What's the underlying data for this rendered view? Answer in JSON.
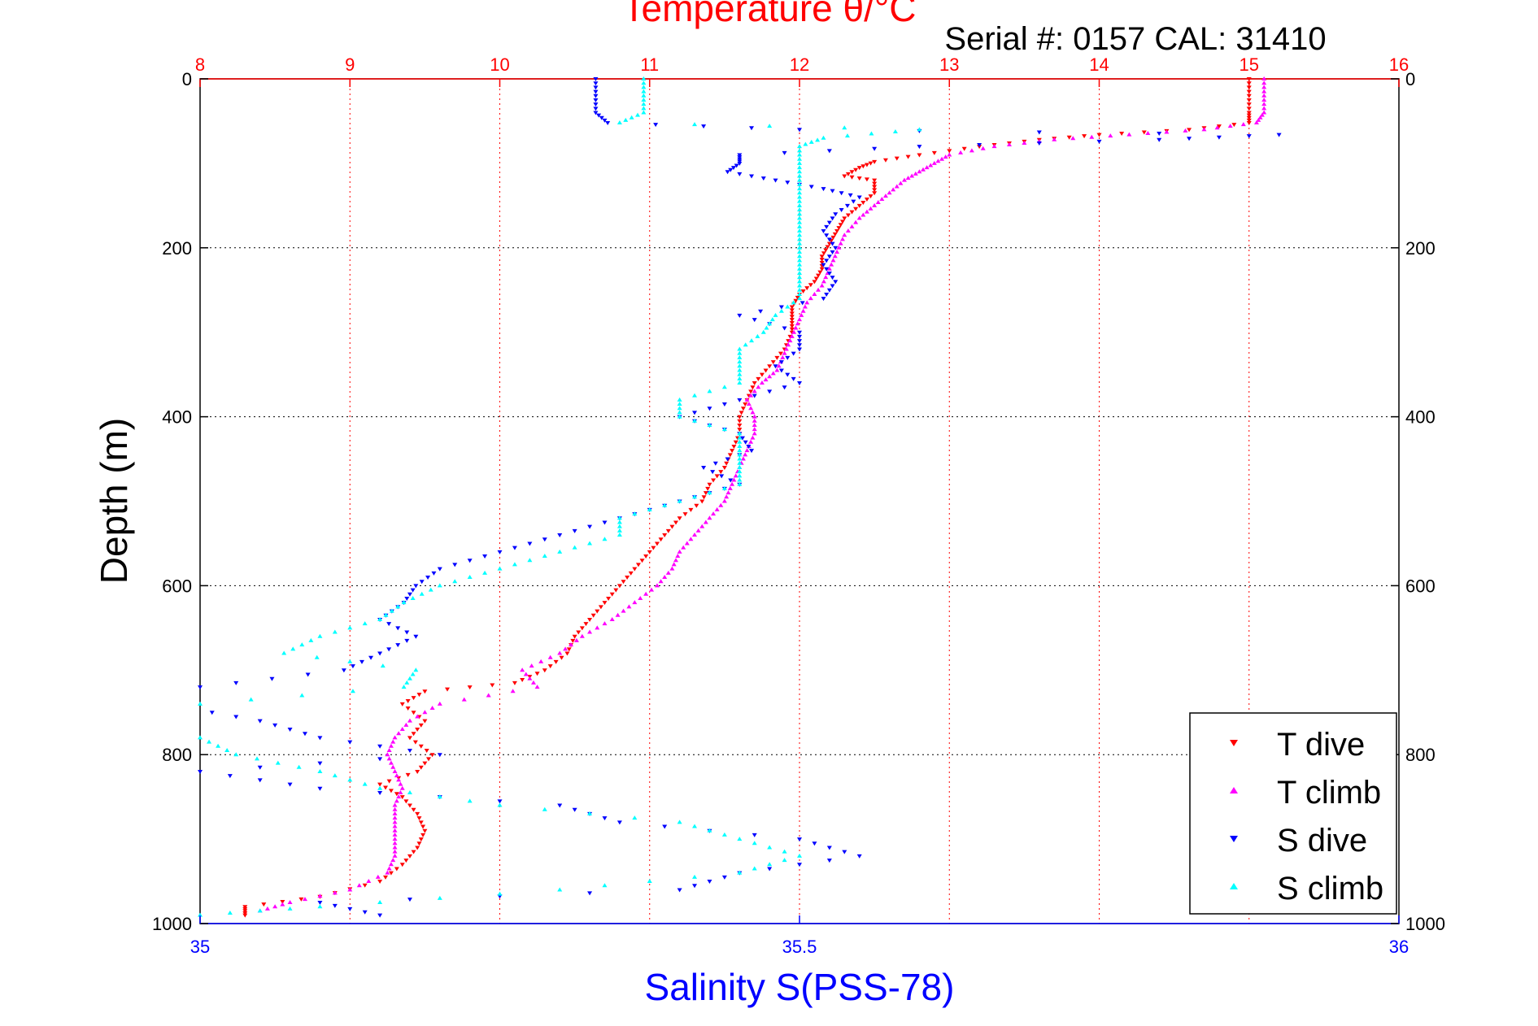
{
  "header": {
    "title": "Temperature θ/°C",
    "serial": "Serial #: 0157  CAL: 31410"
  },
  "colors": {
    "t_dive": "#ff0000",
    "t_climb": "#ff00ff",
    "s_dive": "#0000ff",
    "s_climb": "#00ffff",
    "temp_axis": "#ff0000",
    "sal_axis": "#0000ff",
    "depth_axis": "#000000"
  },
  "chart_data": {
    "type": "scatter",
    "title": "Temperature θ/°C",
    "ylabel": "Depth (m)",
    "xlabel_bottom": "Salinity S(PSS-78)",
    "xlabel_top": "Temperature θ/°C",
    "ylim": [
      0,
      1000
    ],
    "y_reversed": true,
    "temp_lim": [
      8,
      16
    ],
    "sal_lim": [
      35,
      36
    ],
    "temp_ticks": [
      "8",
      "9",
      "10",
      "11",
      "12",
      "13",
      "14",
      "15",
      "16"
    ],
    "sal_ticks": [
      "35",
      "35.5",
      "36"
    ],
    "depth_ticks": [
      "0",
      "200",
      "400",
      "600",
      "800",
      "1000"
    ],
    "grid": "on",
    "legend_position": "bottom-right",
    "legend": [
      "T dive",
      "T climb",
      "S dive",
      "S climb"
    ],
    "series": [
      {
        "name": "T dive",
        "axis": "temperature",
        "marker": "triangle-down",
        "points": [
          [
            15.0,
            0
          ],
          [
            15.0,
            20
          ],
          [
            15.0,
            40
          ],
          [
            15.0,
            52
          ],
          [
            14.6,
            60
          ],
          [
            14.0,
            66
          ],
          [
            13.6,
            72
          ],
          [
            13.2,
            80
          ],
          [
            12.8,
            90
          ],
          [
            12.5,
            98
          ],
          [
            12.4,
            105
          ],
          [
            12.3,
            115
          ],
          [
            12.5,
            120
          ],
          [
            12.5,
            135
          ],
          [
            12.4,
            150
          ],
          [
            12.3,
            165
          ],
          [
            12.25,
            180
          ],
          [
            12.2,
            195
          ],
          [
            12.15,
            210
          ],
          [
            12.15,
            225
          ],
          [
            12.1,
            240
          ],
          [
            12.0,
            255
          ],
          [
            11.95,
            270
          ],
          [
            11.95,
            285
          ],
          [
            11.95,
            300
          ],
          [
            11.9,
            320
          ],
          [
            11.8,
            340
          ],
          [
            11.7,
            360
          ],
          [
            11.65,
            380
          ],
          [
            11.6,
            400
          ],
          [
            11.6,
            420
          ],
          [
            11.55,
            440
          ],
          [
            11.5,
            460
          ],
          [
            11.4,
            480
          ],
          [
            11.35,
            500
          ],
          [
            11.2,
            520
          ],
          [
            11.1,
            540
          ],
          [
            11.0,
            560
          ],
          [
            10.9,
            580
          ],
          [
            10.8,
            600
          ],
          [
            10.7,
            620
          ],
          [
            10.6,
            640
          ],
          [
            10.5,
            660
          ],
          [
            10.45,
            680
          ],
          [
            10.3,
            700
          ],
          [
            10.1,
            715
          ],
          [
            9.5,
            725
          ],
          [
            9.35,
            740
          ],
          [
            9.5,
            760
          ],
          [
            9.4,
            780
          ],
          [
            9.55,
            800
          ],
          [
            9.45,
            820
          ],
          [
            9.2,
            835
          ],
          [
            9.35,
            850
          ],
          [
            9.45,
            870
          ],
          [
            9.5,
            890
          ],
          [
            9.45,
            910
          ],
          [
            9.35,
            930
          ],
          [
            9.2,
            950
          ],
          [
            8.8,
            968
          ],
          [
            8.3,
            980
          ],
          [
            8.3,
            990
          ]
        ]
      },
      {
        "name": "T climb",
        "axis": "temperature",
        "marker": "triangle-up",
        "points": [
          [
            15.1,
            0
          ],
          [
            15.1,
            20
          ],
          [
            15.1,
            40
          ],
          [
            15.05,
            52
          ],
          [
            14.7,
            60
          ],
          [
            14.2,
            66
          ],
          [
            13.7,
            72
          ],
          [
            13.3,
            80
          ],
          [
            13.0,
            90
          ],
          [
            12.9,
            100
          ],
          [
            12.8,
            110
          ],
          [
            12.7,
            120
          ],
          [
            12.6,
            135
          ],
          [
            12.5,
            150
          ],
          [
            12.4,
            165
          ],
          [
            12.3,
            185
          ],
          [
            12.25,
            205
          ],
          [
            12.2,
            225
          ],
          [
            12.15,
            245
          ],
          [
            12.05,
            265
          ],
          [
            12.0,
            285
          ],
          [
            11.95,
            305
          ],
          [
            11.9,
            325
          ],
          [
            11.85,
            345
          ],
          [
            11.75,
            360
          ],
          [
            11.65,
            380
          ],
          [
            11.7,
            400
          ],
          [
            11.7,
            420
          ],
          [
            11.65,
            440
          ],
          [
            11.6,
            460
          ],
          [
            11.55,
            480
          ],
          [
            11.5,
            500
          ],
          [
            11.4,
            520
          ],
          [
            11.3,
            540
          ],
          [
            11.2,
            560
          ],
          [
            11.15,
            580
          ],
          [
            11.05,
            600
          ],
          [
            10.9,
            620
          ],
          [
            10.75,
            640
          ],
          [
            10.55,
            660
          ],
          [
            10.4,
            680
          ],
          [
            10.15,
            700
          ],
          [
            10.25,
            720
          ],
          [
            9.6,
            740
          ],
          [
            9.4,
            760
          ],
          [
            9.3,
            780
          ],
          [
            9.25,
            800
          ],
          [
            9.3,
            820
          ],
          [
            9.35,
            840
          ],
          [
            9.3,
            860
          ],
          [
            9.3,
            880
          ],
          [
            9.3,
            900
          ],
          [
            9.3,
            920
          ],
          [
            9.25,
            940
          ],
          [
            9.0,
            960
          ],
          [
            8.6,
            975
          ],
          [
            8.4,
            985
          ]
        ]
      },
      {
        "name": "S dive",
        "axis": "salinity",
        "marker": "triangle-down",
        "points": [
          [
            35.33,
            0
          ],
          [
            35.33,
            20
          ],
          [
            35.33,
            40
          ],
          [
            35.34,
            52
          ],
          [
            35.5,
            60
          ],
          [
            35.9,
            66
          ],
          [
            35.8,
            72
          ],
          [
            35.6,
            80
          ],
          [
            35.45,
            90
          ],
          [
            35.45,
            100
          ],
          [
            35.44,
            110
          ],
          [
            35.48,
            120
          ],
          [
            35.52,
            130
          ],
          [
            35.55,
            140
          ],
          [
            35.53,
            160
          ],
          [
            35.52,
            180
          ],
          [
            35.53,
            200
          ],
          [
            35.52,
            220
          ],
          [
            35.53,
            240
          ],
          [
            35.52,
            260
          ],
          [
            35.45,
            280
          ],
          [
            35.5,
            300
          ],
          [
            35.5,
            320
          ],
          [
            35.48,
            340
          ],
          [
            35.5,
            360
          ],
          [
            35.45,
            380
          ],
          [
            35.4,
            400
          ],
          [
            35.45,
            420
          ],
          [
            35.46,
            440
          ],
          [
            35.42,
            460
          ],
          [
            35.45,
            480
          ],
          [
            35.4,
            500
          ],
          [
            35.35,
            520
          ],
          [
            35.3,
            540
          ],
          [
            35.25,
            560
          ],
          [
            35.2,
            580
          ],
          [
            35.18,
            600
          ],
          [
            35.17,
            620
          ],
          [
            35.15,
            640
          ],
          [
            35.18,
            660
          ],
          [
            35.15,
            680
          ],
          [
            35.12,
            700
          ],
          [
            35.0,
            720
          ],
          [
            34.97,
            740
          ],
          [
            35.05,
            760
          ],
          [
            35.1,
            780
          ],
          [
            35.2,
            800
          ],
          [
            35.0,
            820
          ],
          [
            35.1,
            840
          ],
          [
            35.3,
            860
          ],
          [
            35.35,
            880
          ],
          [
            35.5,
            900
          ],
          [
            35.55,
            920
          ],
          [
            35.45,
            940
          ],
          [
            35.4,
            960
          ],
          [
            35.1,
            975
          ],
          [
            35.15,
            990
          ]
        ]
      },
      {
        "name": "S climb",
        "axis": "salinity",
        "marker": "triangle-up",
        "points": [
          [
            35.37,
            0
          ],
          [
            35.37,
            20
          ],
          [
            35.37,
            40
          ],
          [
            35.35,
            52
          ],
          [
            35.6,
            60
          ],
          [
            35.52,
            70
          ],
          [
            35.5,
            80
          ],
          [
            35.5,
            100
          ],
          [
            35.5,
            120
          ],
          [
            35.5,
            140
          ],
          [
            35.5,
            160
          ],
          [
            35.5,
            180
          ],
          [
            35.5,
            200
          ],
          [
            35.5,
            220
          ],
          [
            35.5,
            240
          ],
          [
            35.5,
            260
          ],
          [
            35.48,
            280
          ],
          [
            35.47,
            300
          ],
          [
            35.45,
            320
          ],
          [
            35.45,
            340
          ],
          [
            35.45,
            360
          ],
          [
            35.4,
            380
          ],
          [
            35.4,
            400
          ],
          [
            35.45,
            420
          ],
          [
            35.45,
            440
          ],
          [
            35.45,
            460
          ],
          [
            35.45,
            480
          ],
          [
            35.4,
            500
          ],
          [
            35.35,
            520
          ],
          [
            35.35,
            540
          ],
          [
            35.3,
            560
          ],
          [
            35.25,
            580
          ],
          [
            35.2,
            600
          ],
          [
            35.17,
            620
          ],
          [
            35.15,
            640
          ],
          [
            35.1,
            660
          ],
          [
            35.07,
            680
          ],
          [
            35.18,
            700
          ],
          [
            35.17,
            720
          ],
          [
            35.0,
            740
          ],
          [
            34.97,
            760
          ],
          [
            35.0,
            780
          ],
          [
            35.03,
            800
          ],
          [
            35.1,
            820
          ],
          [
            35.15,
            840
          ],
          [
            35.25,
            860
          ],
          [
            35.4,
            880
          ],
          [
            35.45,
            900
          ],
          [
            35.5,
            920
          ],
          [
            35.45,
            940
          ],
          [
            35.3,
            960
          ],
          [
            35.1,
            980
          ],
          [
            35.0,
            990
          ]
        ]
      }
    ]
  }
}
